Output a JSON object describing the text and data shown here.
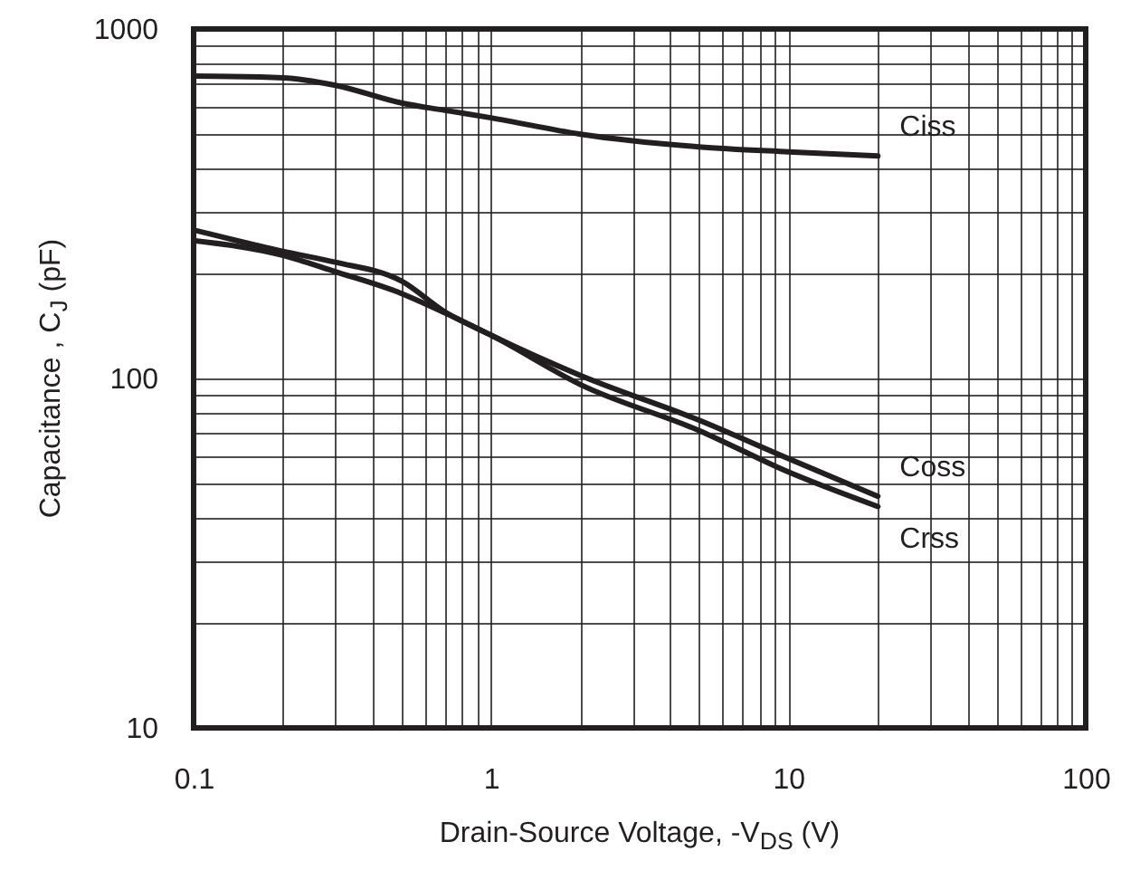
{
  "chart_data": {
    "type": "line",
    "xlabel": "Drain-Source Voltage, -V$_{DS}$ (V)",
    "ylabel": "Capacitance , C$_{J}$ (pF)",
    "x": [
      0.1,
      0.2,
      0.3,
      0.5,
      0.7,
      1,
      2,
      5,
      10,
      20
    ],
    "series": [
      {
        "name": "Ciss",
        "color": "#231f20",
        "values": [
          733,
          725,
          690,
          614,
          585,
          557,
          500,
          460,
          445,
          433
        ]
      },
      {
        "name": "Coss",
        "color": "#231f20",
        "values": [
          266,
          231,
          215,
          190,
          155,
          133,
          102,
          76,
          59,
          46
        ]
      },
      {
        "name": "Crss",
        "color": "#231f20",
        "values": [
          248,
          225,
          202,
          175,
          154,
          133,
          96,
          71,
          54,
          43
        ]
      }
    ],
    "log": "xy",
    "xlim": [
      0.1,
      100
    ],
    "ylim": [
      10,
      1000
    ],
    "xticks": [
      0.1,
      1,
      10,
      100
    ],
    "yticks": [
      10,
      100,
      1000
    ],
    "grid": true,
    "marker": "none",
    "line_style": "solid"
  }
}
